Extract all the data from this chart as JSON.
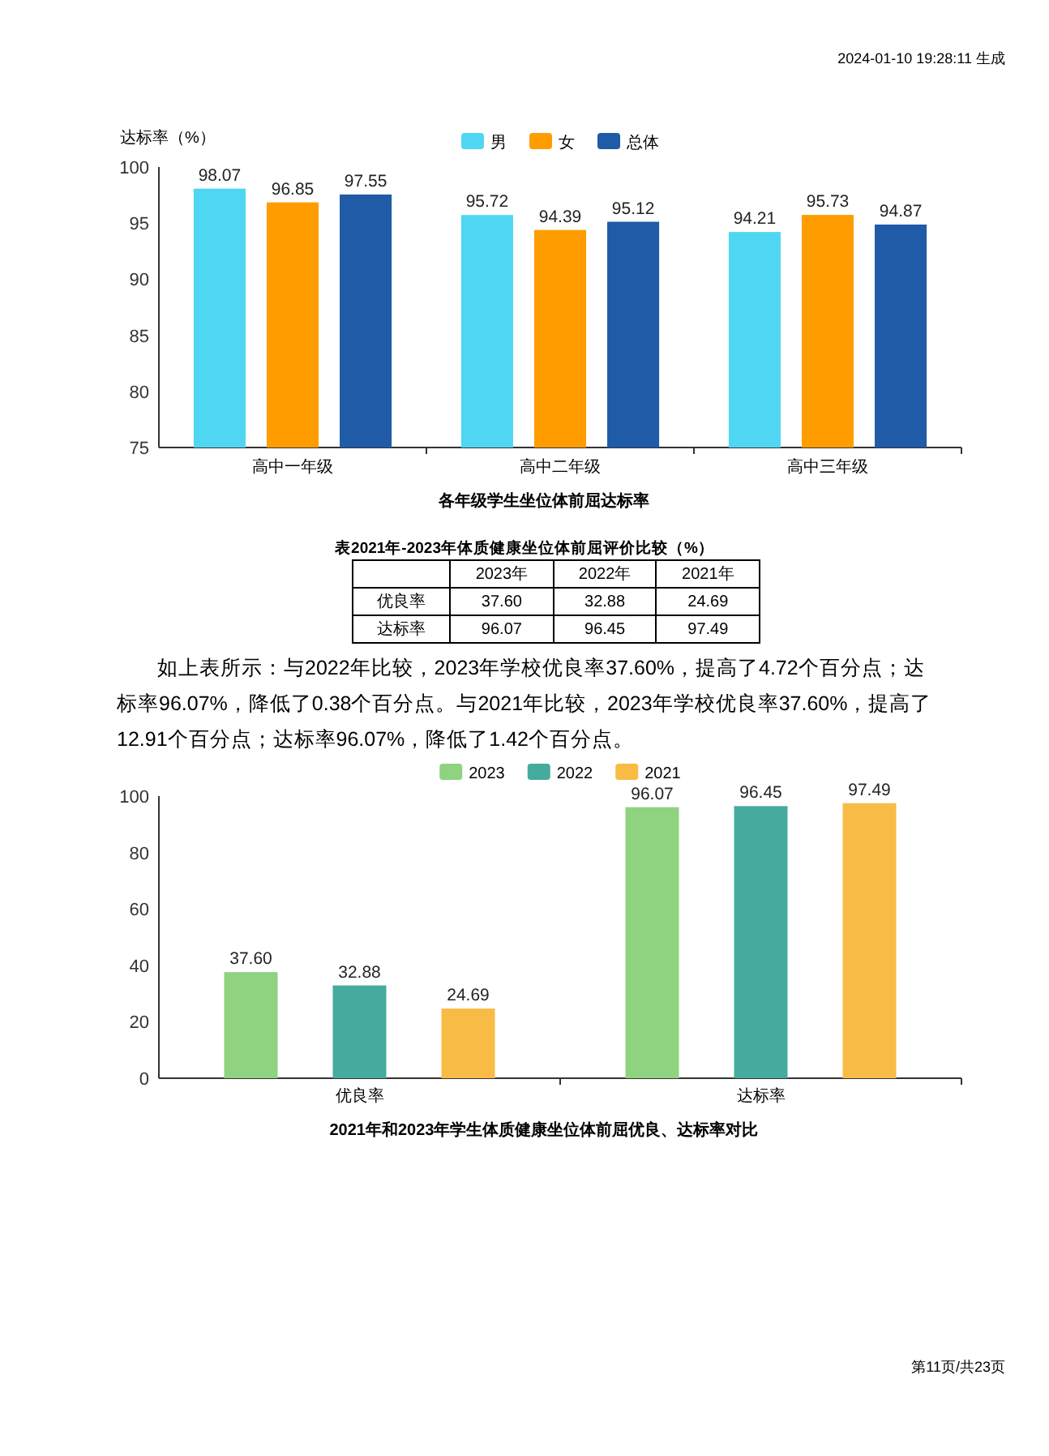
{
  "chart_data": [
    {
      "type": "bar",
      "title": "各年级学生坐位体前屈达标率",
      "ylabel": "达标率（%）",
      "categories": [
        "高中一年级",
        "高中二年级",
        "高中三年级"
      ],
      "series": [
        {
          "name": "男",
          "color": "#4fd6f3",
          "values": [
            98.07,
            95.72,
            94.21
          ]
        },
        {
          "name": "女",
          "color": "#ff9d00",
          "values": [
            96.85,
            94.39,
            95.73
          ]
        },
        {
          "name": "总体",
          "color": "#1f5ba6",
          "values": [
            97.55,
            95.12,
            94.87
          ]
        }
      ],
      "ylim": [
        75,
        100
      ],
      "yticks": [
        75,
        80,
        85,
        90,
        95,
        100
      ],
      "data_labels": true,
      "legend": "top",
      "annotations": [
        "2024-01-10 19:28:11 生成"
      ]
    },
    {
      "type": "other",
      "title": "表2021年-2023年体质健康坐位体前屈评价比较（%）",
      "categories": [
        "2023年",
        "2022年",
        "2021年"
      ],
      "y_categories": [
        "优良率",
        "达标率"
      ],
      "cell_labels": [
        [
          "37.60",
          "32.88",
          "24.69"
        ],
        [
          "96.07",
          "96.45",
          "97.49"
        ]
      ],
      "annotations": [
        "如上表所示：与2022年比较，2023年学校优良率37.60%，提高了4.72个百分点；达标率96.07%，降低了0.38个百分点。与2021年比较，2023年学校优良率37.60%，提高了12.91个百分点；达标率96.07%，降低了1.42个百分点。"
      ]
    },
    {
      "type": "bar",
      "title": "2021年和2023年学生体质健康坐位体前屈优良、达标率对比",
      "categories": [
        "优良率",
        "达标率"
      ],
      "series": [
        {
          "name": "2023",
          "color": "#8fd27f",
          "values": [
            37.6,
            96.07
          ],
          "value_labels": [
            "37.60",
            "96.07"
          ]
        },
        {
          "name": "2022",
          "color": "#45ab9e",
          "values": [
            32.88,
            96.45
          ],
          "value_labels": [
            "32.88",
            "96.45"
          ]
        },
        {
          "name": "2021",
          "color": "#f8bb45",
          "values": [
            24.69,
            97.49
          ],
          "value_labels": [
            "24.69",
            "97.49"
          ]
        }
      ],
      "ylim": [
        0,
        100
      ],
      "yticks": [
        0,
        20,
        40,
        60,
        80,
        100
      ],
      "legend": "top",
      "annotations": [
        "第11页/共23页"
      ]
    }
  ]
}
